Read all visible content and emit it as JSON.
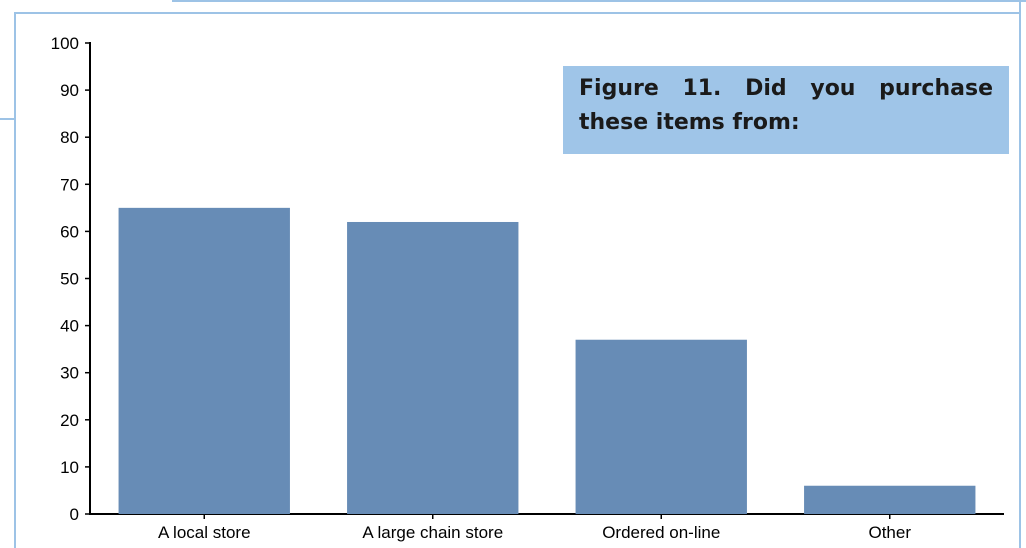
{
  "caption": "Figure 11. Did you purchase these items from:",
  "colors": {
    "bar": "#678cb6",
    "caption_background": "#9fc5e8",
    "frame": "#9dc3e6"
  },
  "chart_data": {
    "type": "bar",
    "title": "",
    "xlabel": "",
    "ylabel": "",
    "categories": [
      "A local store",
      "A large chain store",
      "Ordered on-line",
      "Other"
    ],
    "values": [
      65,
      62,
      37,
      6
    ],
    "ylim": [
      0,
      100
    ],
    "yticks": [
      "0",
      "10",
      "20",
      "30",
      "40",
      "50",
      "60",
      "70",
      "80",
      "90",
      "100"
    ],
    "grid": false,
    "legend": "none"
  }
}
